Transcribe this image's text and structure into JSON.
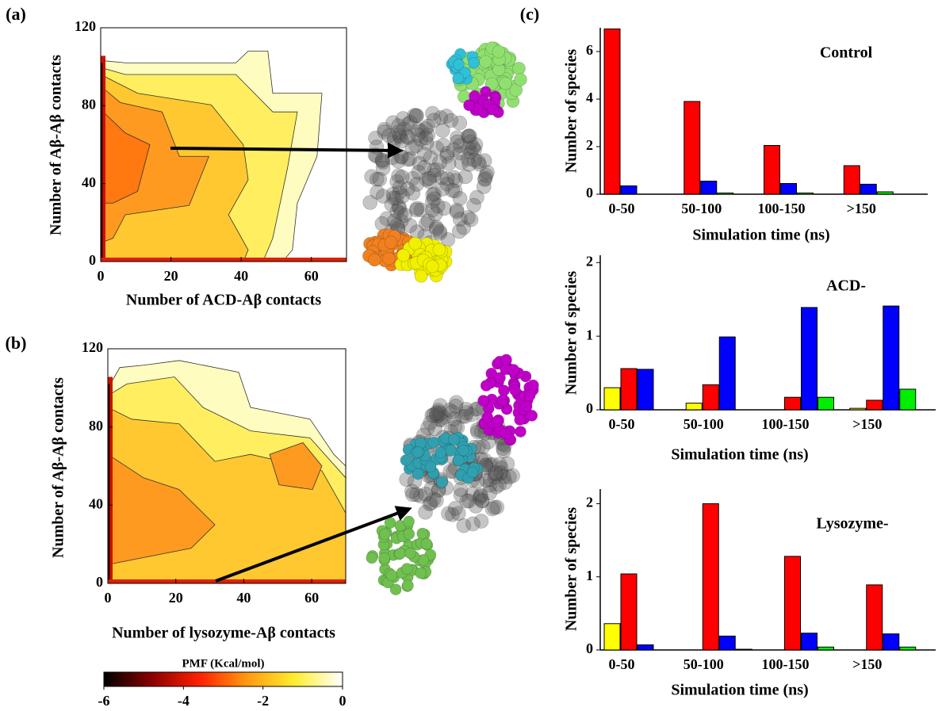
{
  "chart_data": [
    {
      "type": "contour",
      "panel_label": "(a)",
      "x_label": "Number of ACD-Aβ contacts",
      "y_label": "Number of Aβ-Aβ contacts",
      "xlim": [
        0,
        70
      ],
      "ylim": [
        0,
        120
      ],
      "xticks": [
        0,
        20,
        40,
        60
      ],
      "yticks": [
        0,
        40,
        80,
        120
      ]
    },
    {
      "type": "contour",
      "panel_label": "(b)",
      "x_label": "Number of lysozyme-Aβ contacts",
      "y_label": "Number of Aβ-Aβ contacts",
      "xlim": [
        0,
        70
      ],
      "ylim": [
        0,
        120
      ],
      "xticks": [
        0,
        20,
        40,
        60
      ],
      "yticks": [
        0,
        40,
        80,
        120
      ],
      "colorbar": {
        "label": "PMF (Kcal/mol)",
        "lim": [
          -6,
          0
        ],
        "ticks": [
          -6,
          -4,
          -2,
          0
        ]
      }
    },
    {
      "type": "bar",
      "panel_label": "(c)",
      "title": "Control",
      "x_label": "Simulation time (ns)",
      "y_label": "Number of species",
      "categories": [
        "0-50",
        "50-100",
        "100-150",
        ">150"
      ],
      "ylim": [
        0,
        7
      ],
      "yticks": [
        0,
        2,
        4,
        6
      ],
      "series": [
        {
          "color": "#ff0000",
          "values": [
            6.95,
            3.9,
            2.05,
            1.2
          ]
        },
        {
          "color": "#0000ff",
          "values": [
            0.35,
            0.55,
            0.45,
            0.42
          ]
        },
        {
          "color": "#00ee00",
          "values": [
            0,
            0.05,
            0.05,
            0.1
          ]
        }
      ]
    },
    {
      "type": "bar",
      "title": "ACD-",
      "x_label": "Simulation time (ns)",
      "y_label": "Number of species",
      "categories": [
        "0-50",
        "50-100",
        "100-150",
        ">150"
      ],
      "ylim": [
        0,
        2.1
      ],
      "yticks": [
        0,
        1,
        2
      ],
      "series": [
        {
          "color": "#ffff00",
          "values": [
            0.3,
            0.09,
            0,
            0.02
          ]
        },
        {
          "color": "#ff0000",
          "values": [
            0.56,
            0.34,
            0.17,
            0.13
          ]
        },
        {
          "color": "#0000ff",
          "values": [
            0.55,
            0.99,
            1.39,
            1.41
          ]
        },
        {
          "color": "#00ee00",
          "values": [
            0,
            0,
            0.17,
            0.28
          ]
        }
      ]
    },
    {
      "type": "bar",
      "title": "Lysozyme-",
      "x_label": "Simulation time (ns)",
      "y_label": "Number of species",
      "categories": [
        "0-50",
        "50-100",
        "100-150",
        ">150"
      ],
      "ylim": [
        0,
        2.2
      ],
      "yticks": [
        0,
        1,
        2
      ],
      "series": [
        {
          "color": "#ffff00",
          "values": [
            0.36,
            0,
            0,
            0
          ]
        },
        {
          "color": "#ff0000",
          "values": [
            1.04,
            2.0,
            1.28,
            0.89
          ]
        },
        {
          "color": "#0000ff",
          "values": [
            0.07,
            0.19,
            0.23,
            0.22
          ]
        },
        {
          "color": "#00ee00",
          "values": [
            0,
            0.01,
            0.04,
            0.04
          ]
        }
      ]
    }
  ]
}
